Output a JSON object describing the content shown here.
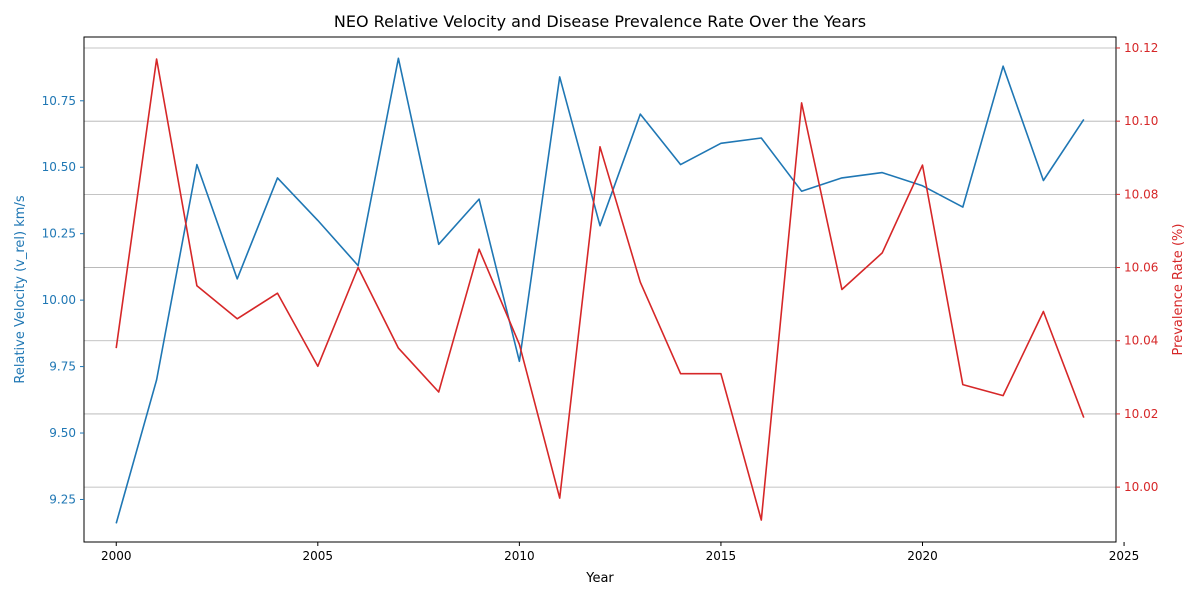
{
  "chart_data": {
    "type": "line",
    "title": "NEO Relative Velocity and Disease Prevalence Rate Over the Years",
    "xlabel": "Year",
    "ylabel_left": "Relative Velocity (v_rel) km/s",
    "ylabel_right": "Prevalence Rate (%)",
    "x": [
      2000,
      2001,
      2002,
      2003,
      2004,
      2005,
      2006,
      2007,
      2008,
      2009,
      2010,
      2011,
      2012,
      2013,
      2014,
      2015,
      2016,
      2017,
      2018,
      2019,
      2020,
      2021,
      2022,
      2023,
      2024
    ],
    "xlim": [
      1999.2,
      2024.8
    ],
    "x_ticks": [
      2000,
      2005,
      2010,
      2015,
      2020,
      2025
    ],
    "series": [
      {
        "axis": "left",
        "color": "#1f77b4",
        "values": [
          9.16,
          9.7,
          10.51,
          10.08,
          10.46,
          10.3,
          10.13,
          10.91,
          10.21,
          10.38,
          9.77,
          10.84,
          10.28,
          10.7,
          10.51,
          10.59,
          10.61,
          10.41,
          10.46,
          10.48,
          10.43,
          10.35,
          10.88,
          10.45,
          10.68
        ]
      },
      {
        "axis": "right",
        "color": "#d62728",
        "values": [
          10.038,
          10.117,
          10.055,
          10.046,
          10.053,
          10.033,
          10.06,
          10.038,
          10.026,
          10.065,
          10.039,
          9.997,
          10.093,
          10.056,
          10.031,
          10.031,
          9.991,
          10.105,
          10.054,
          10.064,
          10.088,
          10.028,
          10.025,
          10.048,
          10.019
        ]
      }
    ],
    "ylim_left": [
      9.09,
      10.99
    ],
    "ylim_right": [
      9.985,
      10.123
    ],
    "y_ticks_left": [
      "9.25",
      "9.50",
      "9.75",
      "10.00",
      "10.25",
      "10.50",
      "10.75"
    ],
    "y_ticks_right": [
      "10.00",
      "10.02",
      "10.04",
      "10.06",
      "10.08",
      "10.10",
      "10.12"
    ],
    "grid": "horizontal-right-axis",
    "left_axis_color": "#1f77b4",
    "right_axis_color": "#d62728"
  }
}
